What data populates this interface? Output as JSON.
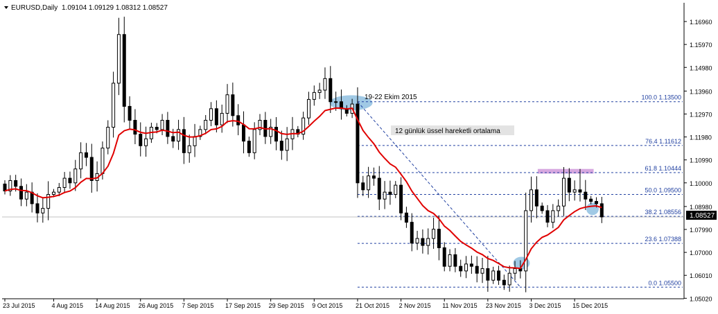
{
  "header": {
    "symbol": "EURUSD,Daily",
    "ohlc": "1.09104 1.09129 1.08312 1.08527"
  },
  "price_label": "1.08527",
  "annotations": {
    "date_range": "19-22 Ekim 2015",
    "ema": "12 günlük üssel hareketli ortalama"
  },
  "colors": {
    "background": "#ffffff",
    "candle_up": "#ffffff",
    "candle_down": "#000000",
    "ema": "#e00000",
    "fib": "#1f3fa0",
    "highlight": "#8fbfe0",
    "resistance_box": "#d7a8e0",
    "price_tag": "#000000"
  },
  "chart_data": {
    "type": "candlestick",
    "title": "EURUSD,Daily",
    "ylim": [
      1.05,
      1.1735
    ],
    "y_ticks": [
      "1.16960",
      "1.15970",
      "1.14980",
      "1.13960",
      "1.12970",
      "1.11980",
      "1.10990",
      "1.10000",
      "1.08980",
      "1.07990",
      "1.07000",
      "1.06010",
      "1.05020"
    ],
    "x_labels": [
      {
        "label": "23 Jul 2015",
        "i": 0
      },
      {
        "label": "4 Aug 2015",
        "i": 9
      },
      {
        "label": "14 Aug 2015",
        "i": 17
      },
      {
        "label": "26 Aug 2015",
        "i": 25
      },
      {
        "label": "7 Sep 2015",
        "i": 33
      },
      {
        "label": "17 Sep 2015",
        "i": 41
      },
      {
        "label": "29 Sep 2015",
        "i": 49
      },
      {
        "label": "9 Oct 2015",
        "i": 57
      },
      {
        "label": "21 Oct 2015",
        "i": 65
      },
      {
        "label": "2 Nov 2015",
        "i": 73
      },
      {
        "label": "11 Nov 2015",
        "i": 81
      },
      {
        "label": "23 Nov 2015",
        "i": 89
      },
      {
        "label": "3 Dec 2015",
        "i": 97
      },
      {
        "label": "15 Dec 2015",
        "i": 105
      }
    ],
    "fib_levels": [
      {
        "label": "100.0 1.13500",
        "value": 1.135
      },
      {
        "label": "76.4 1.11612",
        "value": 1.11612
      },
      {
        "label": "61.8 1.10444",
        "value": 1.10444
      },
      {
        "label": "50.0 1.09500",
        "value": 1.095
      },
      {
        "label": "38.2 1.08556",
        "value": 1.08556
      },
      {
        "label": "23.6 1.07388",
        "value": 1.07388
      },
      {
        "label": "0.0 1.05500",
        "value": 1.055
      }
    ],
    "current_price": 1.08527,
    "close": [
      1.0965,
      1.101,
      1.0985,
      1.093,
      1.096,
      1.091,
      1.087,
      1.089,
      1.095,
      1.096,
      1.098,
      1.102,
      1.1,
      1.106,
      1.113,
      1.111,
      1.101,
      1.104,
      1.115,
      1.124,
      1.143,
      1.164,
      1.133,
      1.127,
      1.121,
      1.116,
      1.119,
      1.124,
      1.123,
      1.127,
      1.12,
      1.118,
      1.123,
      1.113,
      1.116,
      1.12,
      1.123,
      1.127,
      1.132,
      1.125,
      1.13,
      1.138,
      1.129,
      1.125,
      1.118,
      1.113,
      1.123,
      1.127,
      1.12,
      1.124,
      1.118,
      1.114,
      1.119,
      1.123,
      1.121,
      1.128,
      1.136,
      1.139,
      1.14,
      1.145,
      1.135,
      1.135,
      1.132,
      1.13,
      1.134,
      1.1,
      1.097,
      1.103,
      1.102,
      1.093,
      1.096,
      1.095,
      1.099,
      1.087,
      1.083,
      1.074,
      1.076,
      1.073,
      1.076,
      1.08,
      1.072,
      1.064,
      1.069,
      1.064,
      1.062,
      1.065,
      1.064,
      1.061,
      1.063,
      1.058,
      1.062,
      1.058,
      1.056,
      1.061,
      1.063,
      1.062,
      1.088,
      1.097,
      1.09,
      1.088,
      1.083,
      1.088,
      1.09,
      1.102,
      1.096,
      1.097,
      1.096,
      1.093,
      1.092,
      1.091,
      1.0853
    ],
    "ema12_close": true
  }
}
